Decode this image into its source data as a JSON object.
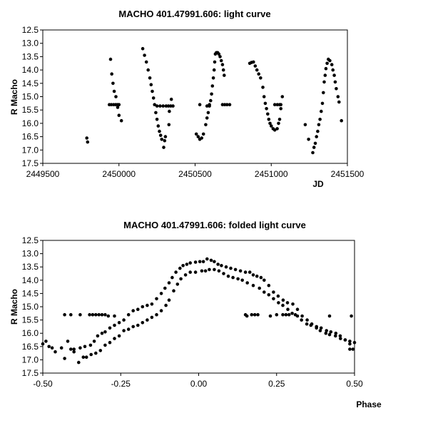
{
  "chart_data": [
    {
      "type": "scatter",
      "title": "MACHO 401.47991.606: light curve",
      "xlabel": "JD",
      "ylabel": "R Macho",
      "xlim": [
        2449500,
        2451500
      ],
      "ylim": [
        12.5,
        17.5
      ],
      "y_inverted": true,
      "grid": false,
      "xticks": [
        2449500,
        2450000,
        2450500,
        2451000,
        2451500
      ],
      "xtick_labels": [
        "2449500",
        "2450000",
        "2450500",
        "2451000",
        "2451500"
      ],
      "yticks": [
        12.5,
        13.0,
        13.5,
        14.0,
        14.5,
        15.0,
        15.5,
        16.0,
        16.5,
        17.0,
        17.5
      ],
      "ytick_labels": [
        "12.5",
        "13.0",
        "13.5",
        "14.0",
        "14.5",
        "15.0",
        "15.5",
        "16.0",
        "16.5",
        "17.0",
        "17.5"
      ],
      "points": [
        [
          2449789,
          16.55
        ],
        [
          2449794,
          16.7
        ],
        [
          2449945,
          13.6
        ],
        [
          2449953,
          14.15
        ],
        [
          2449961,
          14.5
        ],
        [
          2449969,
          14.8
        ],
        [
          2449980,
          15.0
        ],
        [
          2449937,
          15.3
        ],
        [
          2449950,
          15.3
        ],
        [
          2449965,
          15.3
        ],
        [
          2449978,
          15.3
        ],
        [
          2449990,
          15.3
        ],
        [
          2450000,
          15.3
        ],
        [
          2449992,
          15.4
        ],
        [
          2450000,
          15.7
        ],
        [
          2450016,
          15.9
        ],
        [
          2450156,
          13.2
        ],
        [
          2450168,
          13.45
        ],
        [
          2450180,
          13.7
        ],
        [
          2450192,
          14.0
        ],
        [
          2450203,
          14.3
        ],
        [
          2450211,
          14.55
        ],
        [
          2450219,
          14.8
        ],
        [
          2450227,
          15.05
        ],
        [
          2450234,
          15.3
        ],
        [
          2450242,
          15.6
        ],
        [
          2450250,
          15.85
        ],
        [
          2450258,
          16.1
        ],
        [
          2450266,
          16.3
        ],
        [
          2450274,
          16.45
        ],
        [
          2450281,
          16.6
        ],
        [
          2450294,
          16.9
        ],
        [
          2450300,
          16.65
        ],
        [
          2450305,
          16.5
        ],
        [
          2450250,
          15.35
        ],
        [
          2450270,
          15.35
        ],
        [
          2450290,
          15.35
        ],
        [
          2450310,
          15.35
        ],
        [
          2450325,
          15.35
        ],
        [
          2450340,
          15.35
        ],
        [
          2450355,
          15.35
        ],
        [
          2450328,
          16.05
        ],
        [
          2450331,
          15.55
        ],
        [
          2450344,
          15.1
        ],
        [
          2450508,
          16.4
        ],
        [
          2450520,
          16.5
        ],
        [
          2450531,
          16.6
        ],
        [
          2450543,
          16.55
        ],
        [
          2450555,
          16.4
        ],
        [
          2450570,
          16.05
        ],
        [
          2450578,
          15.8
        ],
        [
          2450586,
          15.6
        ],
        [
          2450594,
          15.35
        ],
        [
          2450602,
          15.15
        ],
        [
          2450608,
          14.9
        ],
        [
          2450614,
          14.6
        ],
        [
          2450620,
          14.3
        ],
        [
          2450625,
          14.0
        ],
        [
          2450629,
          13.7
        ],
        [
          2450633,
          13.4
        ],
        [
          2450640,
          13.35
        ],
        [
          2450648,
          13.35
        ],
        [
          2450656,
          13.4
        ],
        [
          2450664,
          13.5
        ],
        [
          2450672,
          13.65
        ],
        [
          2450680,
          13.8
        ],
        [
          2450686,
          14.0
        ],
        [
          2450691,
          14.2
        ],
        [
          2450531,
          15.3
        ],
        [
          2450578,
          15.35
        ],
        [
          2450594,
          15.3
        ],
        [
          2450680,
          15.3
        ],
        [
          2450695,
          15.3
        ],
        [
          2450710,
          15.3
        ],
        [
          2450727,
          15.3
        ],
        [
          2450859,
          13.75
        ],
        [
          2450870,
          13.72
        ],
        [
          2450883,
          13.7
        ],
        [
          2450895,
          13.85
        ],
        [
          2450906,
          14.0
        ],
        [
          2450918,
          14.15
        ],
        [
          2450930,
          14.3
        ],
        [
          2450945,
          14.65
        ],
        [
          2450953,
          15.0
        ],
        [
          2450961,
          15.25
        ],
        [
          2450969,
          15.45
        ],
        [
          2450977,
          15.65
        ],
        [
          2450984,
          15.85
        ],
        [
          2450992,
          16.0
        ],
        [
          2451000,
          16.1
        ],
        [
          2451012,
          16.2
        ],
        [
          2451023,
          16.25
        ],
        [
          2451039,
          16.2
        ],
        [
          2451048,
          16.0
        ],
        [
          2451055,
          15.85
        ],
        [
          2451063,
          15.45
        ],
        [
          2451073,
          15.0
        ],
        [
          2451023,
          15.3
        ],
        [
          2451040,
          15.3
        ],
        [
          2451055,
          15.3
        ],
        [
          2451063,
          15.3
        ],
        [
          2451223,
          16.05
        ],
        [
          2451245,
          16.6
        ],
        [
          2451273,
          17.1
        ],
        [
          2451281,
          16.9
        ],
        [
          2451289,
          16.75
        ],
        [
          2451297,
          16.5
        ],
        [
          2451305,
          16.3
        ],
        [
          2451312,
          16.05
        ],
        [
          2451320,
          15.85
        ],
        [
          2451328,
          15.55
        ],
        [
          2451336,
          15.25
        ],
        [
          2451342,
          14.85
        ],
        [
          2451348,
          14.45
        ],
        [
          2451354,
          14.2
        ],
        [
          2451359,
          13.95
        ],
        [
          2451367,
          13.75
        ],
        [
          2451375,
          13.6
        ],
        [
          2451385,
          13.65
        ],
        [
          2451398,
          13.8
        ],
        [
          2451405,
          14.0
        ],
        [
          2451414,
          14.2
        ],
        [
          2451420,
          14.45
        ],
        [
          2451427,
          14.7
        ],
        [
          2451438,
          15.0
        ],
        [
          2451445,
          15.2
        ],
        [
          2451461,
          15.9
        ]
      ]
    },
    {
      "type": "scatter",
      "title": "MACHO 401.47991.606: folded light curve",
      "xlabel": "Phase",
      "ylabel": "R Macho",
      "xlim": [
        -0.5,
        0.5
      ],
      "ylim": [
        12.5,
        17.5
      ],
      "y_inverted": true,
      "grid": false,
      "xticks": [
        -0.5,
        -0.25,
        0.0,
        0.25,
        0.5
      ],
      "xtick_labels": [
        "-0.50",
        "-0.25",
        "0.00",
        "0.25",
        "0.50"
      ],
      "yticks": [
        12.5,
        13.0,
        13.5,
        14.0,
        14.5,
        15.0,
        15.5,
        16.0,
        16.5,
        17.0,
        17.5
      ],
      "ytick_labels": [
        "12.5",
        "13.0",
        "13.5",
        "14.0",
        "14.5",
        "15.0",
        "15.5",
        "16.0",
        "16.5",
        "17.0",
        "17.5"
      ],
      "points": [
        [
          -0.43,
          15.3
        ],
        [
          -0.41,
          15.3
        ],
        [
          -0.38,
          15.3
        ],
        [
          -0.35,
          15.3
        ],
        [
          -0.34,
          15.3
        ],
        [
          -0.33,
          15.3
        ],
        [
          -0.32,
          15.3
        ],
        [
          -0.31,
          15.3
        ],
        [
          -0.3,
          15.3
        ],
        [
          -0.29,
          15.35
        ],
        [
          -0.27,
          15.35
        ],
        [
          0.15,
          15.3
        ],
        [
          0.155,
          15.35
        ],
        [
          0.17,
          15.3
        ],
        [
          0.18,
          15.3
        ],
        [
          0.19,
          15.3
        ],
        [
          0.23,
          15.35
        ],
        [
          0.25,
          15.3
        ],
        [
          0.27,
          15.3
        ],
        [
          0.28,
          15.3
        ],
        [
          0.29,
          15.3
        ],
        [
          0.31,
          15.3
        ],
        [
          0.42,
          15.35
        ],
        [
          0.49,
          15.35
        ],
        [
          -0.5,
          16.4
        ],
        [
          -0.49,
          16.3
        ],
        [
          -0.48,
          16.5
        ],
        [
          -0.47,
          16.55
        ],
        [
          -0.46,
          16.7
        ],
        [
          -0.44,
          16.55
        ],
        [
          -0.42,
          16.3
        ],
        [
          -0.41,
          16.6
        ],
        [
          -0.4,
          16.7
        ],
        [
          -0.385,
          17.1
        ],
        [
          -0.37,
          16.9
        ],
        [
          -0.36,
          16.9
        ],
        [
          -0.345,
          16.8
        ],
        [
          -0.33,
          16.75
        ],
        [
          -0.315,
          16.65
        ],
        [
          -0.3,
          16.45
        ],
        [
          -0.285,
          16.35
        ],
        [
          -0.27,
          16.2
        ],
        [
          -0.255,
          16.1
        ],
        [
          -0.24,
          15.9
        ],
        [
          -0.225,
          15.85
        ],
        [
          -0.21,
          15.75
        ],
        [
          -0.195,
          15.7
        ],
        [
          -0.18,
          15.6
        ],
        [
          -0.165,
          15.5
        ],
        [
          -0.15,
          15.4
        ],
        [
          -0.135,
          15.3
        ],
        [
          -0.12,
          15.15
        ],
        [
          -0.105,
          14.95
        ],
        [
          -0.095,
          14.75
        ],
        [
          -0.08,
          14.4
        ],
        [
          -0.068,
          14.15
        ],
        [
          -0.057,
          13.95
        ],
        [
          -0.042,
          13.8
        ],
        [
          -0.027,
          13.7
        ],
        [
          -0.01,
          13.7
        ],
        [
          0.01,
          13.65
        ],
        [
          0.022,
          13.65
        ],
        [
          0.034,
          13.6
        ],
        [
          0.05,
          13.6
        ],
        [
          0.065,
          13.65
        ],
        [
          0.08,
          13.75
        ],
        [
          0.095,
          13.85
        ],
        [
          0.11,
          13.9
        ],
        [
          0.126,
          13.95
        ],
        [
          0.14,
          14.0
        ],
        [
          0.156,
          14.1
        ],
        [
          0.175,
          14.2
        ],
        [
          0.195,
          14.3
        ],
        [
          0.21,
          14.45
        ],
        [
          0.225,
          14.55
        ],
        [
          0.24,
          14.7
        ],
        [
          0.256,
          14.85
        ],
        [
          0.27,
          14.95
        ],
        [
          0.286,
          15.1
        ],
        [
          0.3,
          15.25
        ],
        [
          0.317,
          15.35
        ],
        [
          0.33,
          15.5
        ],
        [
          0.347,
          15.65
        ],
        [
          0.36,
          15.7
        ],
        [
          0.378,
          15.8
        ],
        [
          0.39,
          15.9
        ],
        [
          0.408,
          16.0
        ],
        [
          0.42,
          16.05
        ],
        [
          0.439,
          16.1
        ],
        [
          0.455,
          16.2
        ],
        [
          0.47,
          16.25
        ],
        [
          0.485,
          16.3
        ],
        [
          0.5,
          16.35
        ],
        [
          -0.43,
          16.95
        ],
        [
          -0.4,
          16.6
        ],
        [
          -0.38,
          16.55
        ],
        [
          -0.365,
          16.5
        ],
        [
          -0.347,
          16.45
        ],
        [
          -0.335,
          16.3
        ],
        [
          -0.324,
          16.1
        ],
        [
          -0.31,
          16.0
        ],
        [
          -0.3,
          15.95
        ],
        [
          -0.285,
          15.8
        ],
        [
          -0.27,
          15.7
        ],
        [
          -0.255,
          15.6
        ],
        [
          -0.24,
          15.5
        ],
        [
          -0.225,
          15.3
        ],
        [
          -0.21,
          15.15
        ],
        [
          -0.195,
          15.1
        ],
        [
          -0.18,
          15.0
        ],
        [
          -0.165,
          14.95
        ],
        [
          -0.15,
          14.9
        ],
        [
          -0.135,
          14.7
        ],
        [
          -0.12,
          14.5
        ],
        [
          -0.108,
          14.3
        ],
        [
          -0.095,
          14.1
        ],
        [
          -0.085,
          13.9
        ],
        [
          -0.073,
          13.7
        ],
        [
          -0.06,
          13.55
        ],
        [
          -0.05,
          13.45
        ],
        [
          -0.038,
          13.4
        ],
        [
          -0.027,
          13.35
        ],
        [
          -0.01,
          13.32
        ],
        [
          0.004,
          13.3
        ],
        [
          0.015,
          13.3
        ],
        [
          0.027,
          13.2
        ],
        [
          0.04,
          13.25
        ],
        [
          0.05,
          13.3
        ],
        [
          0.062,
          13.4
        ],
        [
          0.073,
          13.45
        ],
        [
          0.088,
          13.5
        ],
        [
          0.103,
          13.55
        ],
        [
          0.118,
          13.6
        ],
        [
          0.134,
          13.65
        ],
        [
          0.15,
          13.7
        ],
        [
          0.164,
          13.7
        ],
        [
          0.175,
          13.8
        ],
        [
          0.187,
          13.85
        ],
        [
          0.2,
          13.9
        ],
        [
          0.21,
          14.0
        ],
        [
          0.225,
          14.2
        ],
        [
          0.24,
          14.45
        ],
        [
          0.255,
          14.6
        ],
        [
          0.271,
          14.75
        ],
        [
          0.285,
          14.85
        ],
        [
          0.302,
          14.9
        ],
        [
          0.317,
          15.1
        ],
        [
          0.332,
          15.35
        ],
        [
          0.348,
          15.5
        ],
        [
          0.363,
          15.65
        ],
        [
          0.378,
          15.75
        ],
        [
          0.393,
          15.8
        ],
        [
          0.41,
          15.9
        ],
        [
          0.424,
          15.95
        ],
        [
          0.44,
          16.0
        ],
        [
          0.454,
          16.1
        ],
        [
          0.47,
          16.25
        ],
        [
          0.485,
          16.4
        ],
        [
          0.485,
          16.6
        ],
        [
          0.495,
          16.6
        ]
      ]
    }
  ]
}
